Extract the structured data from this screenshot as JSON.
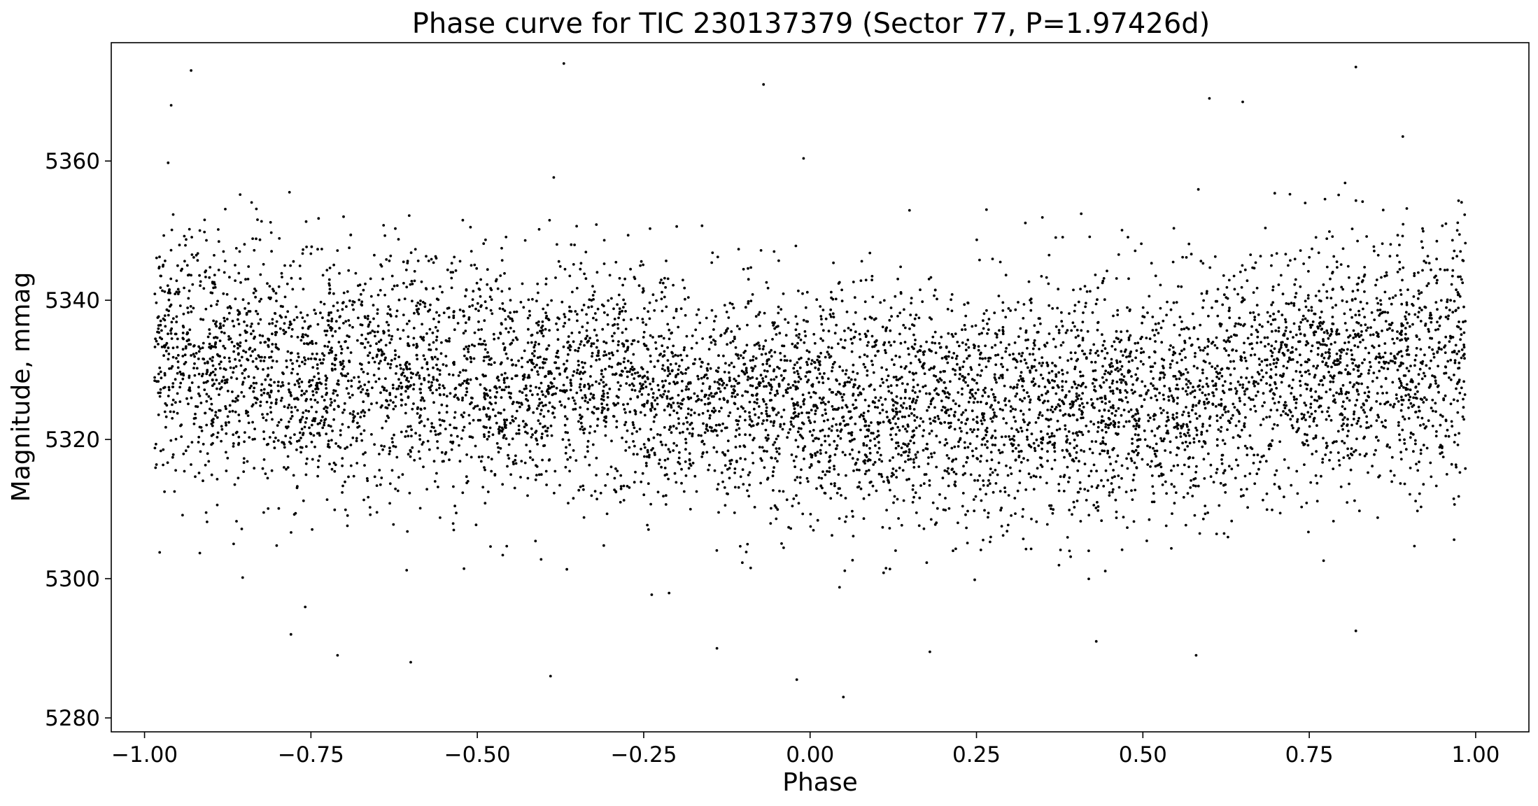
{
  "chart_data": {
    "type": "scatter",
    "title": "Phase curve for TIC 230137379 (Sector 77, P=1.97426d)",
    "xlabel": "Phase",
    "ylabel": "Magnitude, mmag",
    "xlim": [
      -1.05,
      1.08
    ],
    "ylim": [
      5278,
      5377
    ],
    "xticks": [
      -1.0,
      -0.75,
      -0.5,
      -0.25,
      0.0,
      0.25,
      0.5,
      0.75,
      1.0
    ],
    "xtick_labels": [
      "−1.00",
      "−0.75",
      "−0.50",
      "−0.25",
      "0.00",
      "0.25",
      "0.50",
      "0.75",
      "1.00"
    ],
    "yticks": [
      5280,
      5300,
      5320,
      5340,
      5360
    ],
    "ytick_labels": [
      "5280",
      "5300",
      "5320",
      "5340",
      "5360"
    ],
    "grid": false,
    "marker_color": "#000000",
    "phase_range": [
      -0.985,
      0.985
    ],
    "trend": {
      "x": [
        -1.0,
        -0.75,
        -0.5,
        -0.25,
        0.0,
        0.25,
        0.5,
        0.75,
        1.0
      ],
      "y_center": [
        5332.5,
        5330.0,
        5328.5,
        5327.0,
        5326.0,
        5324.5,
        5326.0,
        5330.0,
        5332.0
      ],
      "y_spread_sd": [
        9.0,
        9.0,
        8.5,
        8.5,
        8.5,
        8.5,
        8.5,
        9.0,
        9.5
      ]
    },
    "point_count": 7200,
    "outliers": [
      {
        "x": -0.93,
        "y": 5373
      },
      {
        "x": -0.37,
        "y": 5374
      },
      {
        "x": 0.82,
        "y": 5373.5
      },
      {
        "x": -0.07,
        "y": 5371
      },
      {
        "x": 0.6,
        "y": 5369
      },
      {
        "x": 0.65,
        "y": 5368.5
      },
      {
        "x": -0.96,
        "y": 5368
      },
      {
        "x": 0.05,
        "y": 5283
      },
      {
        "x": -0.39,
        "y": 5286
      },
      {
        "x": -0.6,
        "y": 5288
      },
      {
        "x": -0.71,
        "y": 5289
      },
      {
        "x": 0.58,
        "y": 5289
      },
      {
        "x": -0.02,
        "y": 5285.5
      },
      {
        "x": -0.14,
        "y": 5290
      },
      {
        "x": 0.18,
        "y": 5289.5
      },
      {
        "x": 0.82,
        "y": 5292.5
      },
      {
        "x": -0.78,
        "y": 5292
      },
      {
        "x": 0.43,
        "y": 5291
      }
    ]
  }
}
